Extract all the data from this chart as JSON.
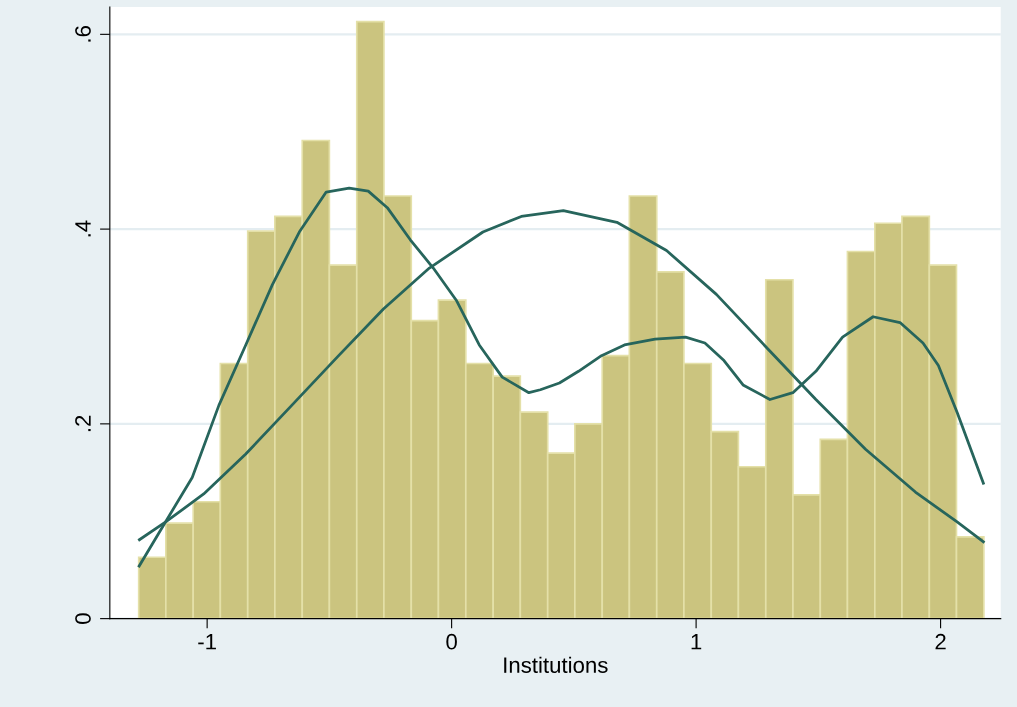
{
  "chart_data": {
    "type": "histogram",
    "xlabel": "Institutions",
    "bins": [
      -1.28,
      -1.169,
      -1.057,
      -0.946,
      -0.834,
      -0.723,
      -0.611,
      -0.5,
      -0.388,
      -0.277,
      -0.165,
      -0.054,
      0.058,
      0.17,
      0.281,
      0.393,
      0.504,
      0.616,
      0.727,
      0.839,
      0.95,
      1.062,
      1.173,
      1.285,
      1.396,
      1.508,
      1.619,
      1.731,
      1.842,
      1.954,
      2.065,
      2.177
    ],
    "values": [
      0.063,
      0.098,
      0.12,
      0.262,
      0.398,
      0.413,
      0.491,
      0.363,
      0.613,
      0.434,
      0.306,
      0.327,
      0.262,
      0.249,
      0.212,
      0.17,
      0.2,
      0.27,
      0.434,
      0.356,
      0.262,
      0.192,
      0.156,
      0.348,
      0.127,
      0.184,
      0.377,
      0.406,
      0.413,
      0.363,
      0.084
    ],
    "color": "#cbc47f",
    "series": [
      {
        "type": "line",
        "color": "#27655c",
        "x": [
          -1.278,
          -1.171,
          -1.061,
          -0.952,
          -0.842,
          -0.733,
          -0.623,
          -0.513,
          -0.419,
          -0.341,
          -0.263,
          -0.169,
          -0.075,
          0.019,
          0.113,
          0.207,
          0.316,
          0.363,
          0.441,
          0.519,
          0.613,
          0.707,
          0.832,
          0.957,
          1.036,
          1.114,
          1.192,
          1.302,
          1.396,
          1.49,
          1.599,
          1.724,
          1.834,
          1.928,
          1.991,
          2.069,
          2.175
        ],
        "values": [
          0.054,
          0.099,
          0.145,
          0.219,
          0.281,
          0.343,
          0.397,
          0.438,
          0.442,
          0.439,
          0.422,
          0.389,
          0.36,
          0.327,
          0.281,
          0.248,
          0.232,
          0.235,
          0.242,
          0.254,
          0.27,
          0.281,
          0.287,
          0.289,
          0.283,
          0.265,
          0.24,
          0.225,
          0.232,
          0.254,
          0.289,
          0.31,
          0.304,
          0.283,
          0.26,
          0.211,
          0.139
        ]
      },
      {
        "type": "line",
        "color": "#27655c",
        "x": [
          -1.277,
          -1.171,
          -1.014,
          -0.842,
          -0.654,
          -0.466,
          -0.279,
          -0.091,
          0.128,
          0.285,
          0.457,
          0.676,
          0.879,
          1.083,
          1.286,
          1.49,
          1.693,
          1.897,
          2.069,
          2.175
        ],
        "values": [
          0.081,
          0.099,
          0.128,
          0.169,
          0.219,
          0.269,
          0.318,
          0.36,
          0.397,
          0.413,
          0.419,
          0.407,
          0.378,
          0.333,
          0.279,
          0.225,
          0.174,
          0.13,
          0.099,
          0.079
        ]
      }
    ],
    "xlim": [
      -1.398,
      2.246
    ],
    "ylim": [
      0,
      0.628
    ],
    "xticks": [
      {
        "value": -1,
        "label": "-1"
      },
      0,
      1,
      2
    ],
    "yticks": [
      0,
      {
        "value": 0.2,
        "label": ".2"
      },
      {
        "value": 0.4,
        "label": ".4"
      },
      {
        "value": 0.6,
        "label": ".6"
      }
    ],
    "grid": "y"
  }
}
